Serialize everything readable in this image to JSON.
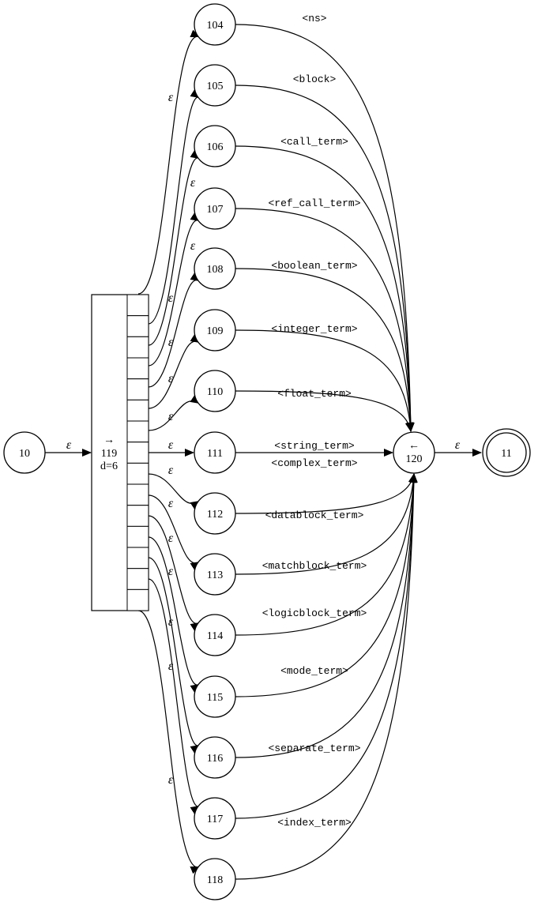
{
  "diagram": {
    "start_node": {
      "label": "10"
    },
    "end_node": {
      "label": "11"
    },
    "fork": {
      "arrow": "→",
      "label": "119",
      "detail": "d=6"
    },
    "join": {
      "arrow": "←",
      "label": "120"
    },
    "epsilon": "ε",
    "branches": [
      {
        "node": "104",
        "term": "<ns>"
      },
      {
        "node": "105",
        "term": "<block>"
      },
      {
        "node": "106",
        "term": "<call_term>"
      },
      {
        "node": "107",
        "term": "<ref_call_term>"
      },
      {
        "node": "108",
        "term": "<boolean_term>"
      },
      {
        "node": "109",
        "term": "<integer_term>"
      },
      {
        "node": "110",
        "term": "<float_term>"
      },
      {
        "node": "111",
        "term": "<string_term>"
      },
      {
        "node": "112",
        "term": "<complex_term>"
      },
      {
        "node": "113",
        "term": "<datablock_term>"
      },
      {
        "node": "114",
        "term": "<matchblock_term>"
      },
      {
        "node": "115",
        "term": "<logicblock_term>"
      },
      {
        "node": "116",
        "term": "<mode_term>"
      },
      {
        "node": "117",
        "term": "<separate_term>"
      },
      {
        "node": "118",
        "term": "<index_term>"
      }
    ]
  }
}
